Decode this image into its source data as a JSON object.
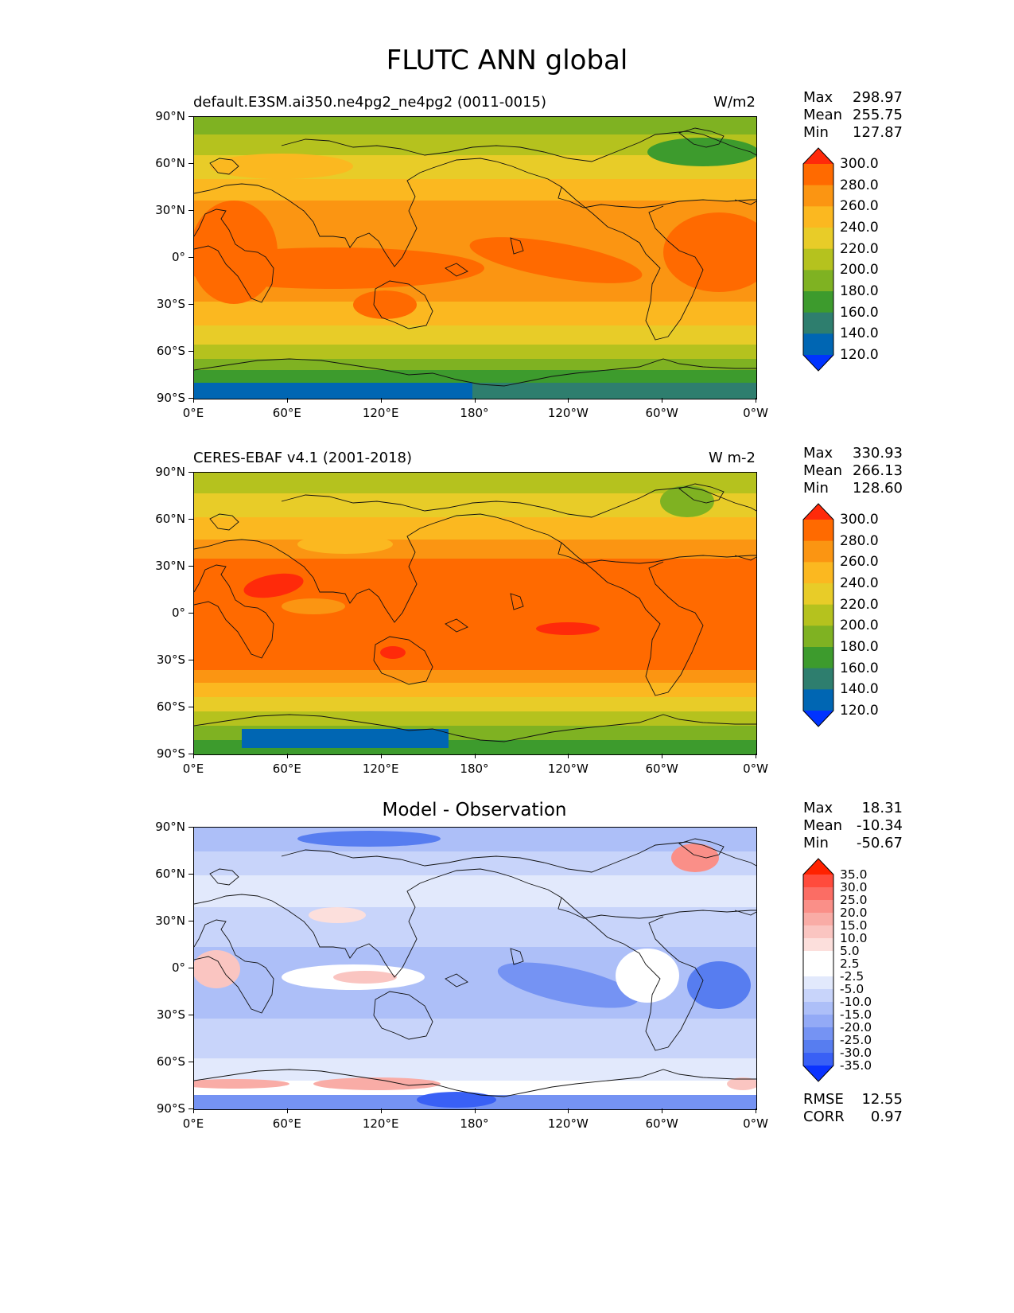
{
  "title": "FLUTC ANN global",
  "longitude_ticks": [
    "0°E",
    "60°E",
    "120°E",
    "180°",
    "120°W",
    "60°W",
    "0°W"
  ],
  "latitude_ticks": [
    "90°N",
    "60°N",
    "30°N",
    "0°",
    "30°S",
    "60°S",
    "90°S"
  ],
  "panels": [
    {
      "id": "test",
      "left_title": "default.E3SM.ai350.ne4pg2_ne4pg2 (0011-0015)",
      "center_title": "",
      "units": "W/m2",
      "stats": [
        {
          "label": "Max",
          "value": "298.97"
        },
        {
          "label": "Mean",
          "value": "255.75"
        },
        {
          "label": "Min",
          "value": "127.87"
        }
      ],
      "colorbar": {
        "levels": [
          "300.0",
          "280.0",
          "260.0",
          "240.0",
          "220.0",
          "200.0",
          "180.0",
          "160.0",
          "140.0",
          "120.0"
        ],
        "colors": [
          "#ff2a0a",
          "#ff6a00",
          "#fb9512",
          "#fbb820",
          "#e8cc28",
          "#b5c21e",
          "#7fb222",
          "#3d9b2d",
          "#2e7e6e",
          "#0066b3",
          "#0033ff"
        ]
      }
    },
    {
      "id": "reference",
      "left_title": "CERES-EBAF v4.1 (2001-2018)",
      "center_title": "",
      "units": "W m-2",
      "stats": [
        {
          "label": "Max",
          "value": "330.93"
        },
        {
          "label": "Mean",
          "value": "266.13"
        },
        {
          "label": "Min",
          "value": "128.60"
        }
      ],
      "colorbar": {
        "levels": [
          "300.0",
          "280.0",
          "260.0",
          "240.0",
          "220.0",
          "200.0",
          "180.0",
          "160.0",
          "140.0",
          "120.0"
        ],
        "colors": [
          "#ff2a0a",
          "#ff6a00",
          "#fb9512",
          "#fbb820",
          "#e8cc28",
          "#b5c21e",
          "#7fb222",
          "#3d9b2d",
          "#2e7e6e",
          "#0066b3",
          "#0033ff"
        ]
      }
    },
    {
      "id": "diff",
      "left_title": "",
      "center_title": "Model - Observation",
      "units": "",
      "stats": [
        {
          "label": "Max",
          "value": "18.31"
        },
        {
          "label": "Mean",
          "value": "-10.34"
        },
        {
          "label": "Min",
          "value": "-50.67"
        }
      ],
      "extra_stats": [
        {
          "label": "RMSE",
          "value": "12.55"
        },
        {
          "label": "CORR",
          "value": "0.97"
        }
      ],
      "colorbar": {
        "levels": [
          "35.0",
          "30.0",
          "25.0",
          "20.0",
          "15.0",
          "10.0",
          "5.0",
          "2.5",
          "-2.5",
          "-5.0",
          "-10.0",
          "-15.0",
          "-20.0",
          "-25.0",
          "-30.0",
          "-35.0"
        ],
        "colors": [
          "#ff2200",
          "#ff4b3c",
          "#fb6d64",
          "#fa8f88",
          "#f9aca6",
          "#fac5c1",
          "#fcdfdc",
          "#ffffff",
          "#ffffff",
          "#e2e9fc",
          "#c8d4fa",
          "#adbff8",
          "#93aaf6",
          "#7593f3",
          "#577df0",
          "#3960f5",
          "#0b33ff"
        ]
      }
    }
  ]
}
